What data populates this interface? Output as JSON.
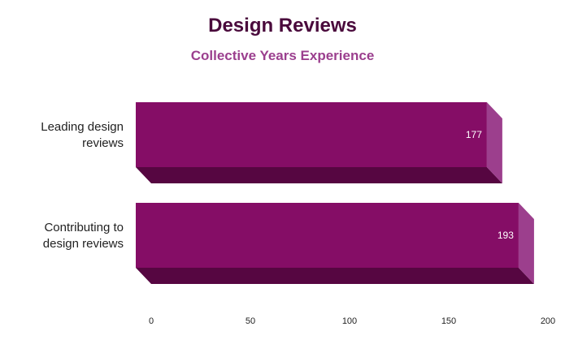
{
  "chart_data": {
    "type": "bar",
    "orientation": "horizontal",
    "title": "Design Reviews",
    "subtitle": "Collective Years Experience",
    "categories": [
      [
        "Leading design",
        "reviews"
      ],
      [
        "Contributing to",
        "design reviews"
      ]
    ],
    "values": [
      177,
      193
    ],
    "data_labels": [
      "177",
      "193"
    ],
    "xlim": [
      0,
      200
    ],
    "xticks": [
      0,
      50,
      100,
      150,
      200
    ],
    "xlabel": "",
    "ylabel": "",
    "grid": false,
    "legend": "none",
    "colors": {
      "front": "#850d66",
      "top_side": "#9c3f8d",
      "bottom_side": "#560641",
      "title": "#4a0a3c",
      "subtitle": "#9b3f8e"
    }
  }
}
